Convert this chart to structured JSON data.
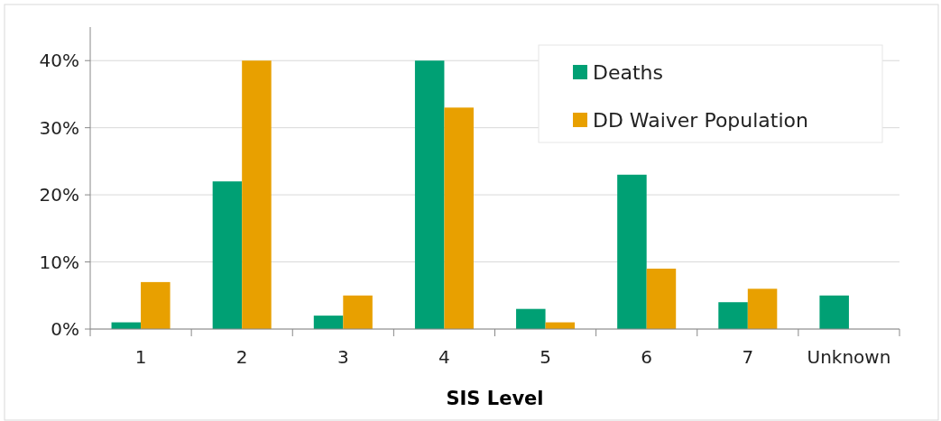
{
  "chart_data": {
    "type": "bar",
    "xlabel": "SIS Level",
    "categories": [
      "1",
      "2",
      "3",
      "4",
      "5",
      "6",
      "7",
      "Unknown"
    ],
    "series": [
      {
        "name": "Deaths",
        "color": "#00a074",
        "values": [
          1,
          22,
          2,
          40,
          3,
          23,
          4,
          5
        ]
      },
      {
        "name": "DD Waiver Population",
        "color": "#e8a000",
        "values": [
          7,
          40,
          5,
          33,
          1,
          9,
          6,
          null
        ]
      }
    ],
    "ylim": [
      0,
      45
    ],
    "yticks": [
      {
        "value": 0,
        "label": "0%"
      },
      {
        "value": 10,
        "label": "10%"
      },
      {
        "value": 20,
        "label": "20%"
      },
      {
        "value": 30,
        "label": "30%"
      },
      {
        "value": 40,
        "label": "40%"
      }
    ],
    "grid": "y",
    "legend": "top right"
  }
}
